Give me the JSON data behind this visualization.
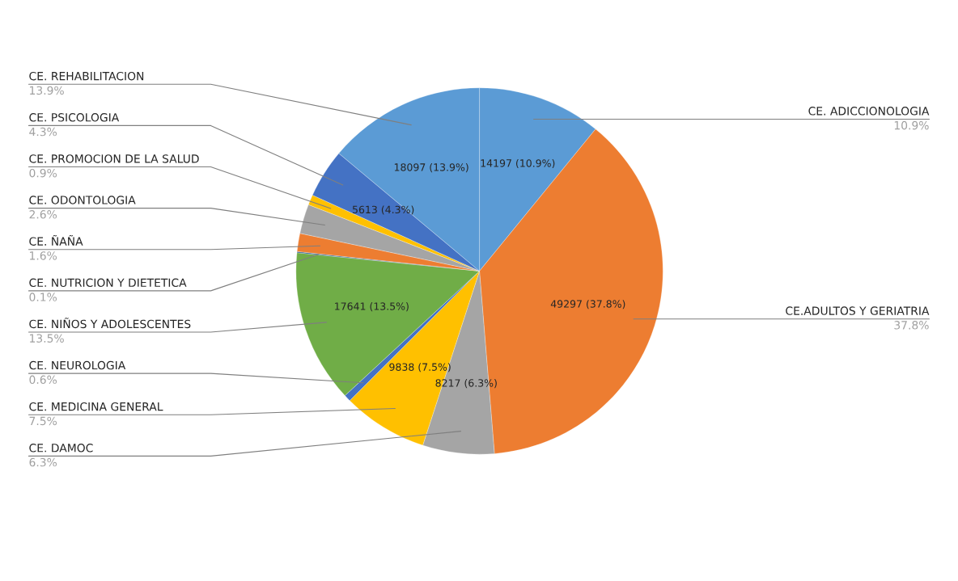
{
  "chart_data": {
    "type": "pie",
    "categories": [
      "CE. ADICCIONOLOGIA",
      "CE.ADULTOS Y GERIATRIA",
      "CE. DAMOC",
      "CE. MEDICINA GENERAL",
      "CE. NEUROLOGIA",
      "CE. NIÑOS Y ADOLESCENTES",
      "CE. NUTRICION Y DIETETICA",
      "CE. ÑAÑA",
      "CE. ODONTOLOGIA",
      "CE. PROMOCION DE LA SALUD",
      "CE. PSICOLOGIA",
      "CE. REHABILITACION"
    ],
    "values": [
      10.9,
      37.8,
      6.3,
      7.5,
      0.6,
      13.5,
      0.1,
      1.6,
      2.6,
      0.9,
      4.3,
      13.9
    ],
    "value_labels": [
      "14197 (10.9%)",
      "49297 (37.8%)",
      "8217 (6.3%)",
      "9838 (7.5%)",
      null,
      "17641 (13.5%)",
      null,
      null,
      null,
      null,
      "5613 (4.3%)",
      "18097 (13.9%)"
    ],
    "colors": [
      "#5b9bd5",
      "#ed7d31",
      "#a5a5a5",
      "#ffc000",
      "#4472c4",
      "#70ad47",
      "#255e91",
      "#ed7d31",
      "#a5a5a5",
      "#ffc000",
      "#4472c4",
      "#5b9bd5"
    ],
    "annotations": [
      "10.9%",
      "37.8%",
      "6.3%",
      "7.5%",
      "0.6%",
      "13.5%",
      "0.1%",
      "1.6%",
      "2.6%",
      "0.9%",
      "4.3%",
      "13.9%"
    ],
    "legend": false
  }
}
